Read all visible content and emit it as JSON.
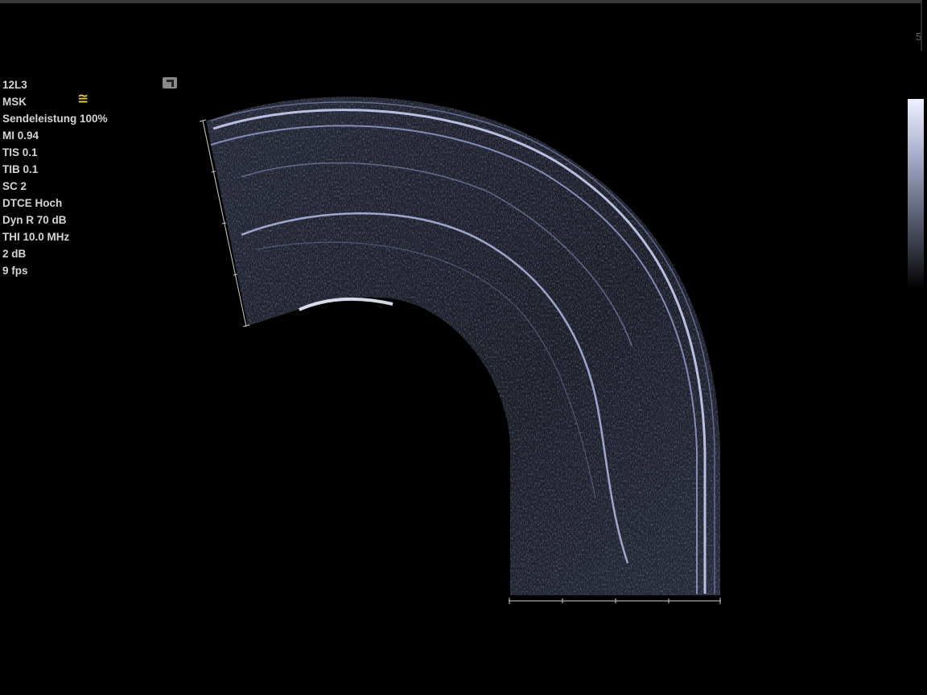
{
  "probe": "12L3",
  "preset": "MSK",
  "icons": {
    "preset_icon": "≅",
    "probe_orientation": "probe-orientation-marker"
  },
  "parameters": [
    "Sendeleistung 100%",
    "MI 0.94",
    "TIS 0.1",
    "TIB 0.1",
    "SC 2",
    "DTCE Hoch",
    "Dyn R 70 dB",
    "THI 10.0 MHz",
    "2 dB",
    "9 fps"
  ],
  "colors": {
    "background": "#000000",
    "text": "#d4d4d4",
    "accent_icon": "#e8c23c",
    "tissue_tint": "#a8b2e0"
  }
}
